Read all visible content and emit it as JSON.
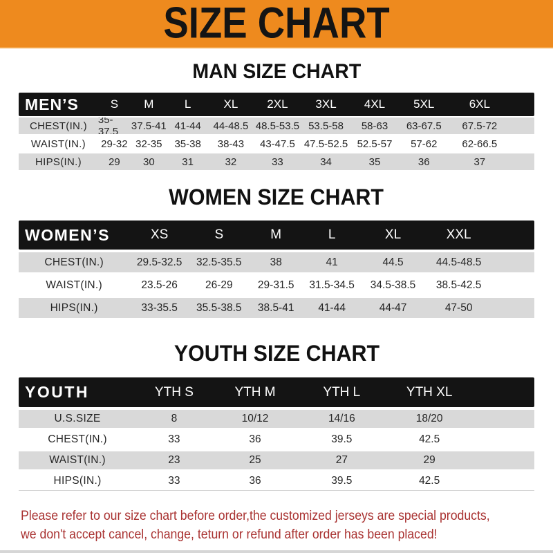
{
  "banner": {
    "title": "SIZE CHART"
  },
  "colors": {
    "banner_bg": "#ee8a1e",
    "header_bar": "#141414",
    "row_shade": "#d9d9d9",
    "footer_text": "#a93231"
  },
  "sections": [
    {
      "title": "MAN SIZE CHART",
      "header_label": "MEN’S",
      "columns": [
        "S",
        "M",
        "L",
        "XL",
        "2XL",
        "3XL",
        "4XL",
        "5XL",
        "6XL"
      ],
      "rows": [
        {
          "label": "CHEST(IN.)",
          "values": [
            "35-37.5",
            "37.5-41",
            "41-44",
            "44-48.5",
            "48.5-53.5",
            "53.5-58",
            "58-63",
            "63-67.5",
            "67.5-72"
          ]
        },
        {
          "label": "WAIST(IN.)",
          "values": [
            "29-32",
            "32-35",
            "35-38",
            "38-43",
            "43-47.5",
            "47.5-52.5",
            "52.5-57",
            "57-62",
            "62-66.5"
          ]
        },
        {
          "label": "HIPS(IN.)",
          "values": [
            "29",
            "30",
            "31",
            "32",
            "33",
            "34",
            "35",
            "36",
            "37"
          ]
        }
      ]
    },
    {
      "title": "WOMEN SIZE CHART",
      "header_label": "WOMEN’S",
      "columns": [
        "XS",
        "S",
        "M",
        "L",
        "XL",
        "XXL"
      ],
      "rows": [
        {
          "label": "CHEST(IN.)",
          "values": [
            "29.5-32.5",
            "32.5-35.5",
            "38",
            "41",
            "44.5",
            "44.5-48.5"
          ]
        },
        {
          "label": "WAIST(IN.)",
          "values": [
            "23.5-26",
            "26-29",
            "29-31.5",
            "31.5-34.5",
            "34.5-38.5",
            "38.5-42.5"
          ]
        },
        {
          "label": "HIPS(IN.)",
          "values": [
            "33-35.5",
            "35.5-38.5",
            "38.5-41",
            "41-44",
            "44-47",
            "47-50"
          ]
        }
      ]
    },
    {
      "title": "YOUTH SIZE CHART",
      "header_label": "YOUTH",
      "columns": [
        "YTH S",
        "YTH M",
        "YTH L",
        "YTH XL"
      ],
      "rows": [
        {
          "label": "U.S.SIZE",
          "values": [
            "8",
            "10/12",
            "14/16",
            "18/20"
          ]
        },
        {
          "label": "CHEST(IN.)",
          "values": [
            "33",
            "36",
            "39.5",
            "42.5"
          ]
        },
        {
          "label": "WAIST(IN.)",
          "values": [
            "23",
            "25",
            "27",
            "29"
          ]
        },
        {
          "label": "HIPS(IN.)",
          "values": [
            "33",
            "36",
            "39.5",
            "42.5"
          ]
        }
      ]
    }
  ],
  "footer": {
    "line1": "Please refer to our size chart before order,the customized jerseys are special products,",
    "line2": "we don't accept cancel, change, teturn or refund after order has been placed!"
  }
}
